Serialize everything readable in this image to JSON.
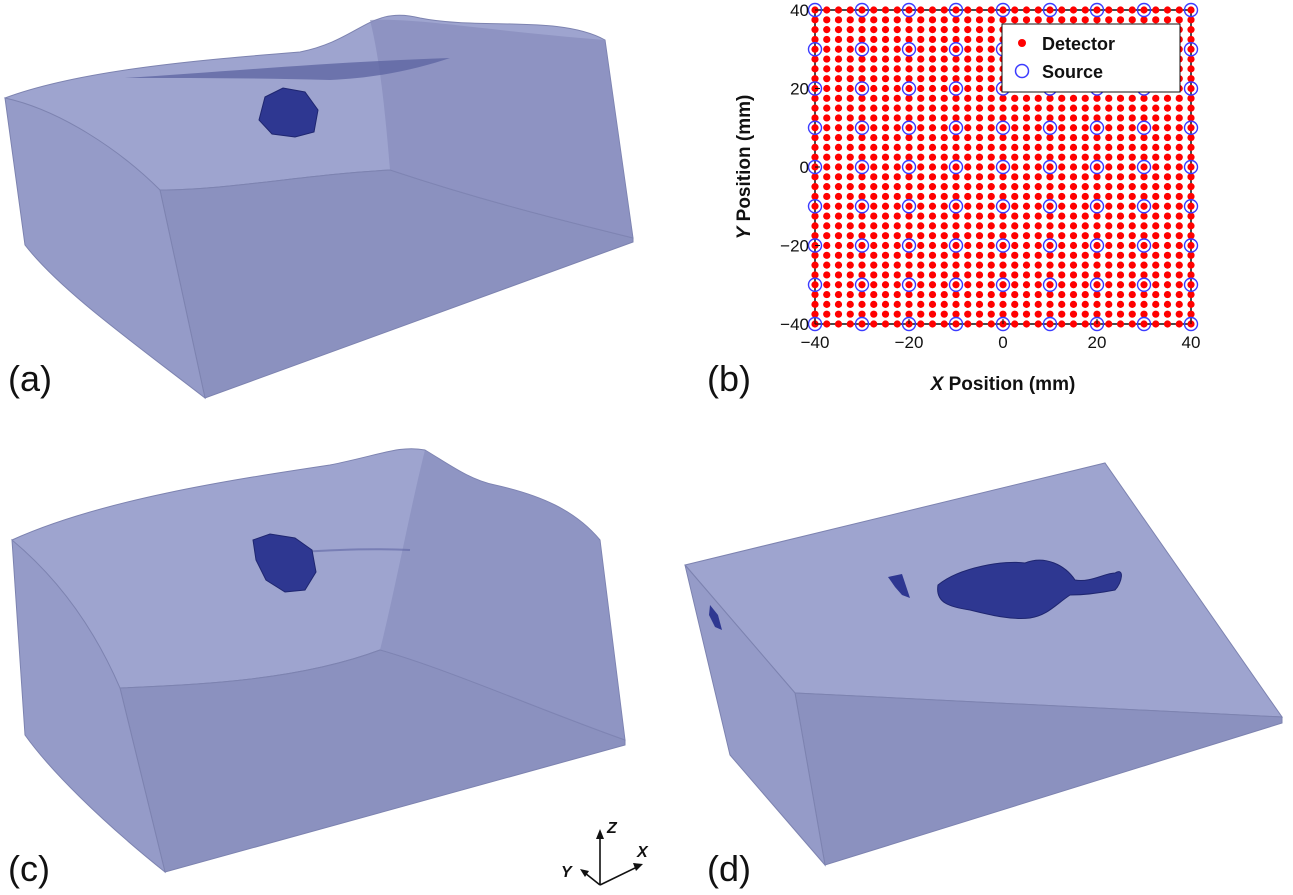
{
  "panels": {
    "a": "(a)",
    "b": "(b)",
    "c": "(c)",
    "d": "(d)"
  },
  "colors": {
    "box": "#8e94c2",
    "box_dark": "#7f85b4",
    "inclusion": "#2e3791",
    "detector": "#ff0000",
    "source": "#3b3bff"
  },
  "axes_triad": {
    "z": "Z",
    "x": "X",
    "y": "Y"
  },
  "chart_data": {
    "type": "scatter",
    "title": "",
    "xlabel_prefix": "X",
    "xlabel_rest": " Position (mm)",
    "ylabel_prefix": "Y",
    "ylabel_rest": " Position (mm)",
    "xlim": [
      -40,
      40
    ],
    "ylim": [
      -40,
      40
    ],
    "xticks": [
      -40,
      -20,
      0,
      20,
      40
    ],
    "yticks": [
      -40,
      -20,
      0,
      20,
      40
    ],
    "xtick_labels": [
      "−40",
      "−20",
      "0",
      "20",
      "40"
    ],
    "ytick_labels": [
      "−40",
      "−20",
      "0",
      "20",
      "40"
    ],
    "legend_position": "top-right",
    "series": [
      {
        "name": "Detector",
        "marker": "dot",
        "color": "#ff0000",
        "grid": {
          "min": -40,
          "max": 40,
          "step": 2.5
        }
      },
      {
        "name": "Source",
        "marker": "open-circle",
        "color": "#3b3bff",
        "grid": {
          "min": -40,
          "max": 40,
          "step": 10
        }
      }
    ]
  }
}
